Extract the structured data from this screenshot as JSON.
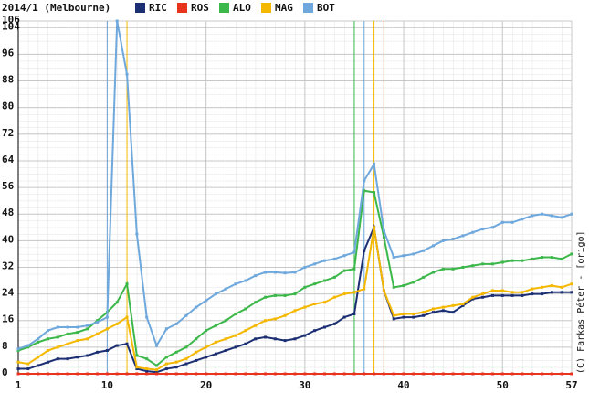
{
  "chart_data": {
    "type": "line",
    "title": "2014/1 (Melbourne)",
    "credit": "(C) Farkas Péter - [origo]",
    "x": [
      1,
      2,
      3,
      4,
      5,
      6,
      7,
      8,
      9,
      10,
      11,
      12,
      13,
      14,
      15,
      16,
      17,
      18,
      19,
      20,
      21,
      22,
      23,
      24,
      25,
      26,
      27,
      28,
      29,
      30,
      31,
      32,
      33,
      34,
      35,
      36,
      37,
      38,
      39,
      40,
      41,
      42,
      43,
      44,
      45,
      46,
      47,
      48,
      49,
      50,
      51,
      52,
      53,
      54,
      55,
      56,
      57
    ],
    "xlim": [
      1,
      57
    ],
    "xticks": [
      1,
      10,
      20,
      30,
      40,
      50,
      57
    ],
    "ylim": [
      0,
      106
    ],
    "yticks": [
      0,
      8,
      16,
      24,
      32,
      40,
      48,
      56,
      64,
      72,
      80,
      88,
      96,
      104,
      106
    ],
    "grid": true,
    "series": [
      {
        "name": "RIC",
        "color": "#1c2f73",
        "values": [
          1.5,
          1.5,
          2.5,
          3.5,
          4.5,
          4.5,
          5,
          5.5,
          6.5,
          7,
          8.5,
          9,
          1.5,
          0.8,
          0.5,
          1.5,
          2,
          3,
          4,
          5,
          6,
          7,
          8,
          9,
          10.5,
          11,
          10.5,
          10,
          10.5,
          11.5,
          13,
          14,
          15,
          17,
          18,
          37,
          44,
          25,
          16.5,
          17,
          17,
          17.5,
          18.5,
          19,
          18.5,
          20.5,
          22.5,
          23,
          23.5,
          23.5,
          23.5,
          23.5,
          24,
          24,
          24.5,
          24.5,
          24.5
        ]
      },
      {
        "name": "ROS",
        "color": "#e8341c",
        "values": [
          0,
          0,
          0,
          0,
          0,
          0,
          0,
          0,
          0,
          0,
          0,
          0,
          0,
          0,
          0,
          0,
          0,
          0,
          0,
          0,
          0,
          0,
          0,
          0,
          0,
          0,
          0,
          0,
          0,
          0,
          0,
          0,
          0,
          0,
          0,
          0,
          0,
          0,
          0,
          0,
          0,
          0,
          0,
          0,
          0,
          0,
          0,
          0,
          0,
          0,
          0,
          0,
          0,
          0,
          0,
          0,
          0
        ]
      },
      {
        "name": "ALO",
        "color": "#3cb84a",
        "values": [
          7,
          8,
          9.5,
          10.5,
          11,
          12,
          12.5,
          13.5,
          16,
          18.5,
          21.5,
          27,
          5.5,
          4.5,
          2.5,
          5,
          6.5,
          8,
          10.5,
          13,
          14.5,
          16,
          18,
          19.5,
          21.5,
          23,
          23.5,
          23.5,
          24,
          26,
          27,
          28,
          29,
          31,
          31.5,
          55,
          54.5,
          41,
          26,
          26.5,
          27.5,
          29,
          30.5,
          31.5,
          31.5,
          32,
          32.5,
          33,
          33,
          33.5,
          34,
          34,
          34.5,
          35,
          35,
          34.5,
          36
        ]
      },
      {
        "name": "MAG",
        "color": "#f5b800",
        "values": [
          3.5,
          3,
          5,
          7,
          8,
          9,
          10,
          10.5,
          12,
          13.5,
          15,
          17,
          2,
          1.5,
          1.2,
          3,
          3.5,
          4.5,
          6.5,
          8,
          9.5,
          10.5,
          11.5,
          13,
          14.5,
          16,
          16.5,
          17.5,
          19,
          20,
          21,
          21.5,
          23,
          24,
          24.5,
          25.5,
          44,
          25,
          17.5,
          18,
          18,
          18.5,
          19.5,
          20,
          20.5,
          21,
          23,
          24,
          25,
          25,
          24.5,
          24.5,
          25.5,
          26,
          26.5,
          26,
          27
        ]
      },
      {
        "name": "BOT",
        "color": "#6fa8dc",
        "values": [
          7.5,
          8.5,
          10.5,
          13,
          14,
          14,
          14,
          14.5,
          15.5,
          17,
          106,
          90,
          42,
          17,
          8.5,
          13.5,
          15,
          17.5,
          20,
          22,
          24,
          25.5,
          27,
          28,
          29.5,
          30.5,
          30.5,
          30.3,
          30.5,
          32,
          33,
          34,
          34.5,
          35.5,
          36.5,
          58,
          63,
          43,
          35,
          35.5,
          36,
          37,
          38.5,
          40,
          40.5,
          41.5,
          42.5,
          43.5,
          44,
          45.5,
          45.5,
          46.5,
          47.5,
          48,
          47.5,
          47,
          48
        ]
      }
    ],
    "pit_stops": [
      {
        "lap": 10,
        "color": "#6fa8dc"
      },
      {
        "lap": 12,
        "color": "#f5b800"
      },
      {
        "lap": 35,
        "color": "#3cb84a"
      },
      {
        "lap": 36,
        "color": "#6fa8dc"
      },
      {
        "lap": 37,
        "color": "#f5b800"
      },
      {
        "lap": 38,
        "color": "#e8341c"
      }
    ]
  }
}
